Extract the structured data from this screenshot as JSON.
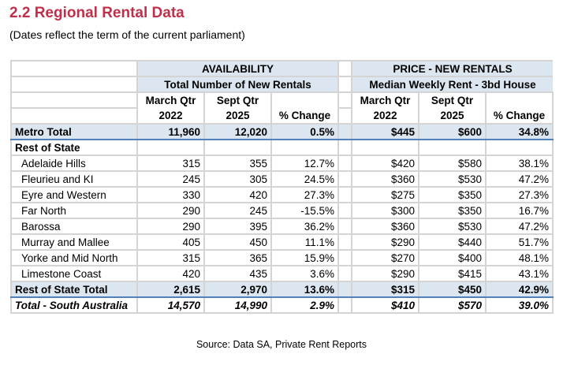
{
  "title": "2.2 Regional Rental Data",
  "subtitle": "(Dates reflect the term of the current parliament)",
  "groups": {
    "availability": {
      "title": "AVAILABILITY",
      "subtitle": "Total Number of New Rentals"
    },
    "price": {
      "title": "PRICE - NEW RENTALS",
      "subtitle": "Median Weekly Rent - 3bd House"
    }
  },
  "columns": [
    {
      "l1": "March Qtr",
      "l2": "2022"
    },
    {
      "l1": "Sept Qtr",
      "l2": "2025"
    },
    {
      "l1": "",
      "l2": "% Change"
    },
    {
      "l1": "March Qtr",
      "l2": "2022"
    },
    {
      "l1": "Sept Qtr",
      "l2": "2025"
    },
    {
      "l1": "",
      "l2": "% Change"
    }
  ],
  "metro": [
    "Metro Total",
    "11,960",
    "12,020",
    "0.5%",
    "$445",
    "$600",
    "34.8%"
  ],
  "rest_heading": "Rest of State",
  "rows": [
    [
      "Adelaide Hills",
      "315",
      "355",
      "12.7%",
      "$420",
      "$580",
      "38.1%"
    ],
    [
      "Fleurieu and KI",
      "245",
      "305",
      "24.5%",
      "$360",
      "$530",
      "47.2%"
    ],
    [
      "Eyre and Western",
      "330",
      "420",
      "27.3%",
      "$275",
      "$350",
      "27.3%"
    ],
    [
      "Far North",
      "290",
      "245",
      "-15.5%",
      "$300",
      "$350",
      "16.7%"
    ],
    [
      "Barossa",
      "290",
      "395",
      "36.2%",
      "$360",
      "$530",
      "47.2%"
    ],
    [
      "Murray and Mallee",
      "405",
      "450",
      "11.1%",
      "$290",
      "$440",
      "51.7%"
    ],
    [
      "Yorke and Mid North",
      "315",
      "365",
      "15.9%",
      "$270",
      "$400",
      "48.1%"
    ],
    [
      "Limestone Coast",
      "420",
      "435",
      "3.6%",
      "$290",
      "$415",
      "43.1%"
    ]
  ],
  "rest_total": [
    "Rest of State Total",
    "2,615",
    "2,970",
    "13.6%",
    "$315",
    "$450",
    "42.9%"
  ],
  "sa_total": [
    "Total - South Australia",
    "14,570",
    "14,990",
    "2.9%",
    "$410",
    "$570",
    "39.0%"
  ],
  "source": "Source: Data SA, Private Rent Reports",
  "colors": {
    "title": "#c0304a",
    "header_fill": "#dce6f0",
    "rule": "#4f81bd"
  }
}
